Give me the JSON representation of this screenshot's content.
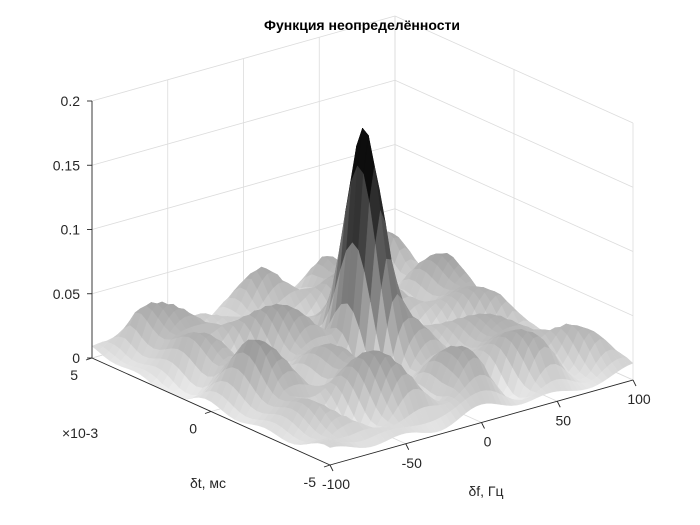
{
  "chart_data": {
    "type": "surface",
    "title": "Функция неопределённости",
    "xlabel": "δf, Гц",
    "ylabel": "δt, мс",
    "zlabel": "",
    "xlim": [
      -100,
      100
    ],
    "ylim": [
      -5,
      5
    ],
    "zlim": [
      0,
      0.2
    ],
    "x_ticks": [
      -100,
      -50,
      0,
      50,
      100
    ],
    "x_tick_labels": [
      "-100",
      "-50",
      "0",
      "50",
      "100"
    ],
    "y_ticks": [
      -5,
      0,
      5
    ],
    "y_tick_labels": [
      "-5",
      "0",
      "5"
    ],
    "y_exponent_label": "×10-3",
    "z_ticks": [
      0,
      0.05,
      0.1,
      0.15,
      0.2
    ],
    "z_tick_labels": [
      "0",
      "0.05",
      "0.1",
      "0.15",
      "0.2"
    ],
    "grid": true,
    "colormap": "gray",
    "peak": {
      "x": 0,
      "y": 0,
      "z": 0.157
    },
    "sidelobe_level": 0.04
  }
}
